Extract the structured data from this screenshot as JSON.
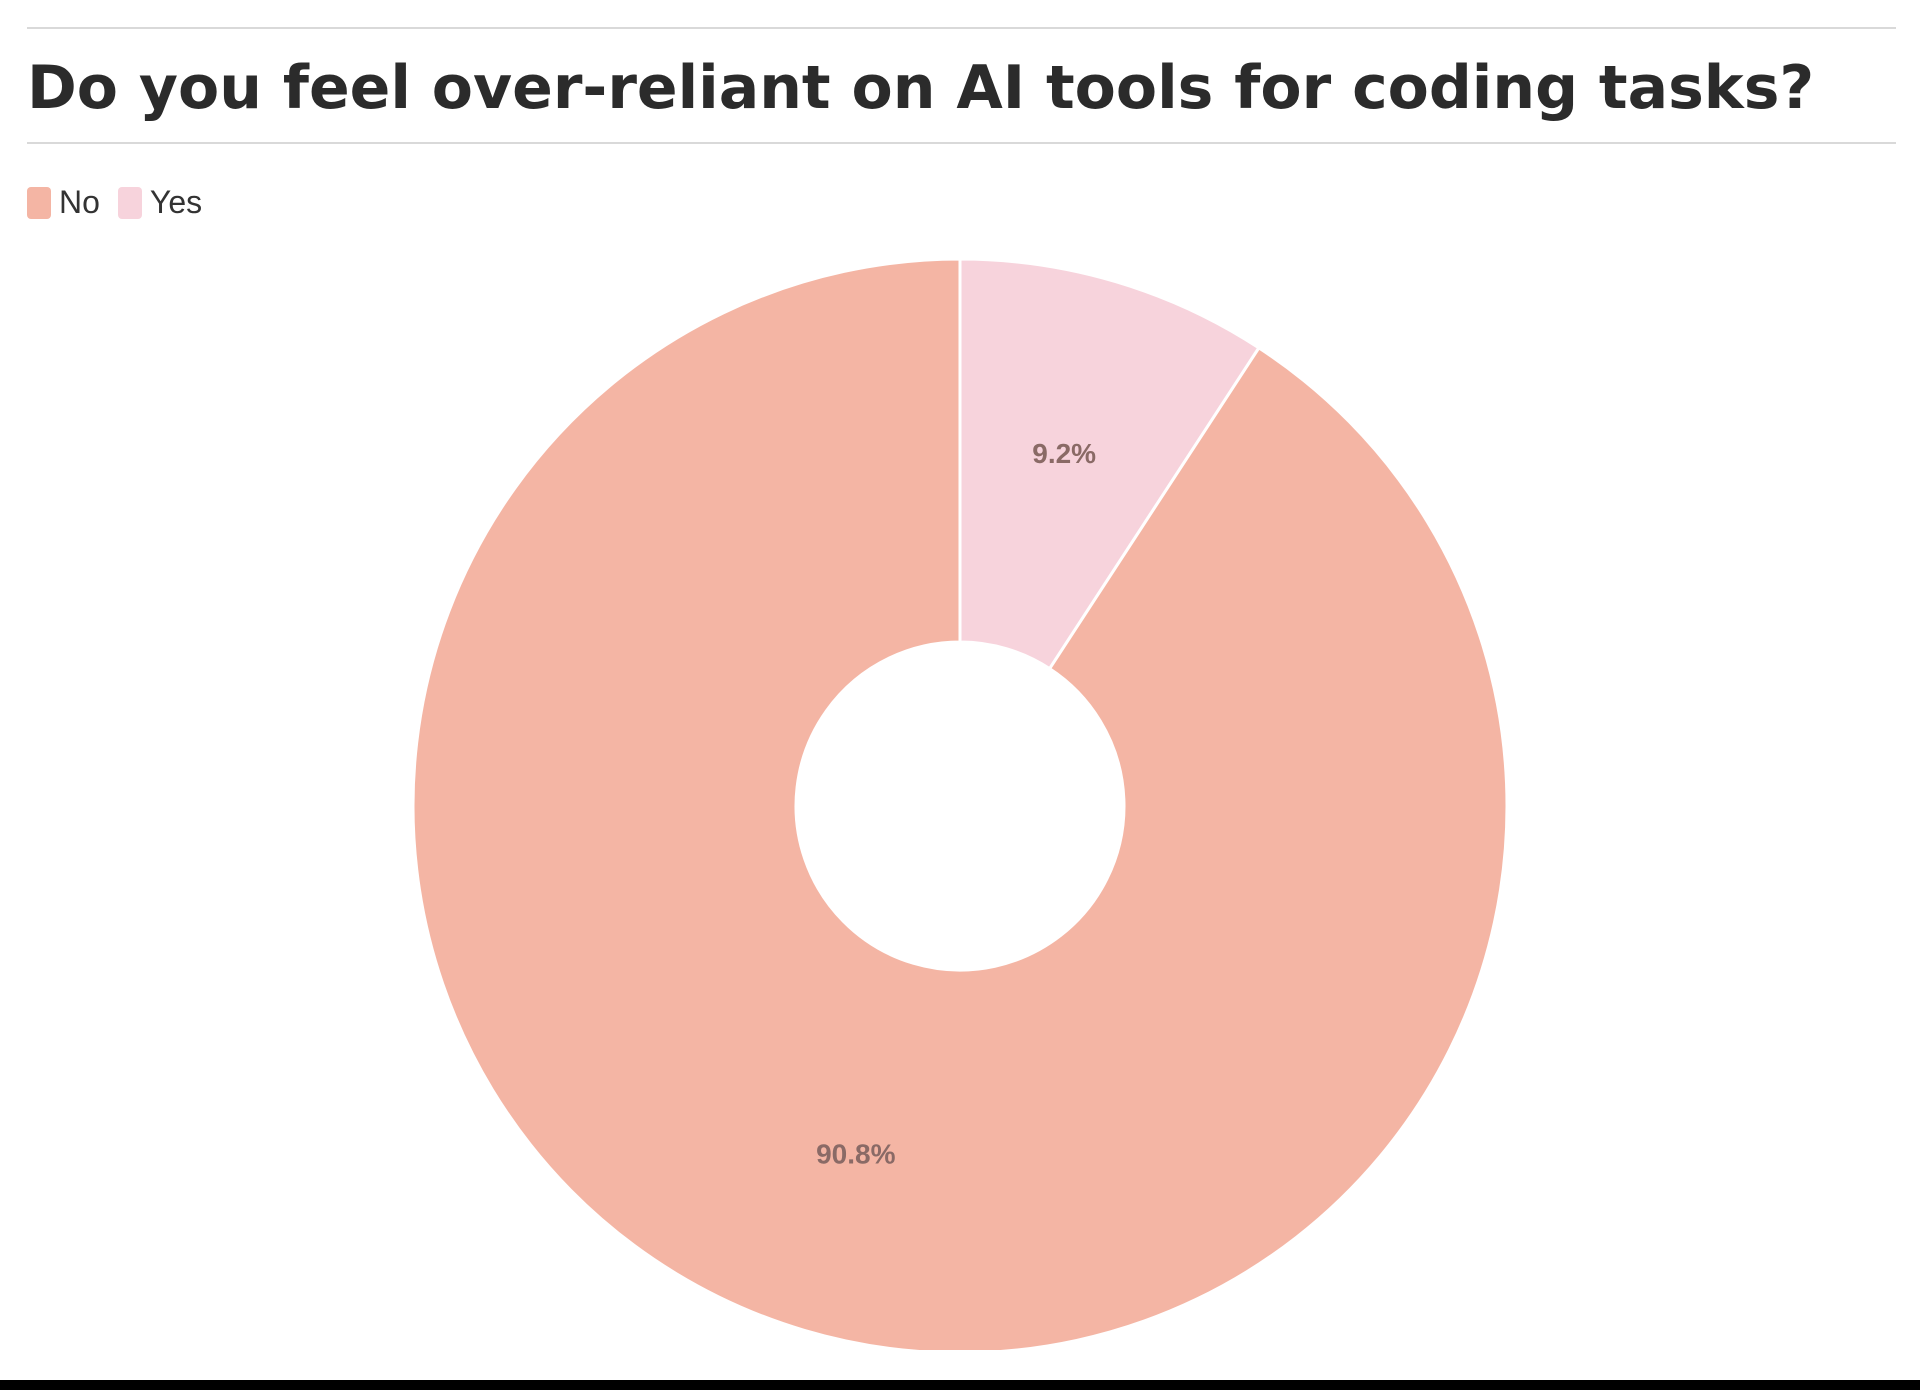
{
  "chart_data": {
    "type": "pie",
    "title": "Do you feel over-reliant on AI tools for coding tasks?",
    "donut": true,
    "legend_position": "top-left",
    "slices": [
      {
        "label": "No",
        "value": 90.8,
        "display": "90.8%",
        "color": "#F4B5A4"
      },
      {
        "label": "Yes",
        "value": 9.2,
        "display": "9.2%",
        "color": "#F7D3DC"
      }
    ]
  }
}
